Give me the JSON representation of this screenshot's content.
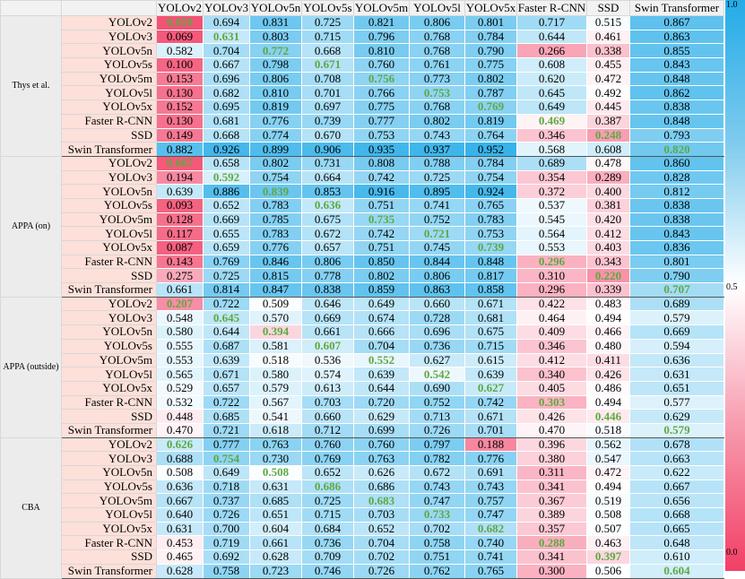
{
  "chart_data": {
    "type": "heatmap",
    "columns": [
      "YOLOv2",
      "YOLOv3",
      "YOLOv5n",
      "YOLOv5s",
      "YOLOv5m",
      "YOLOv5l",
      "YOLOv5x",
      "Faster R-CNN",
      "SSD",
      "Swin Transformer"
    ],
    "color_scale": {
      "min": 0.0,
      "mid": 0.5,
      "max": 1.0,
      "min_color": "#f23f65",
      "mid_color": "#ffffff",
      "max_color": "#23abe8"
    },
    "colorbar_ticks": [
      "1.0",
      "0.5",
      "0.0"
    ],
    "highlight_color": "#5fa843",
    "groups": [
      {
        "label": "Thys et al.",
        "rows": [
          {
            "label": "YOLOv2",
            "values": [
              0.05,
              0.694,
              0.831,
              0.725,
              0.821,
              0.806,
              0.801,
              0.717,
              0.515,
              0.867
            ],
            "highlight": 0
          },
          {
            "label": "YOLOv3",
            "values": [
              0.069,
              0.631,
              0.803,
              0.715,
              0.796,
              0.768,
              0.784,
              0.644,
              0.461,
              0.863
            ],
            "highlight": 1
          },
          {
            "label": "YOLOv5n",
            "values": [
              0.582,
              0.704,
              0.772,
              0.668,
              0.81,
              0.768,
              0.79,
              0.266,
              0.338,
              0.855
            ],
            "highlight": 2
          },
          {
            "label": "YOLOv5s",
            "values": [
              0.1,
              0.667,
              0.798,
              0.671,
              0.76,
              0.761,
              0.775,
              0.608,
              0.455,
              0.843
            ],
            "highlight": 3
          },
          {
            "label": "YOLOv5m",
            "values": [
              0.153,
              0.696,
              0.806,
              0.708,
              0.756,
              0.773,
              0.802,
              0.62,
              0.472,
              0.848
            ],
            "highlight": 4
          },
          {
            "label": "YOLOv5l",
            "values": [
              0.13,
              0.682,
              0.81,
              0.701,
              0.766,
              0.753,
              0.787,
              0.645,
              0.492,
              0.862
            ],
            "highlight": 5
          },
          {
            "label": "YOLOv5x",
            "values": [
              0.152,
              0.695,
              0.819,
              0.697,
              0.775,
              0.768,
              0.769,
              0.649,
              0.445,
              0.838
            ],
            "highlight": 6
          },
          {
            "label": "Faster R-CNN",
            "values": [
              0.13,
              0.681,
              0.776,
              0.739,
              0.777,
              0.802,
              0.819,
              0.469,
              0.387,
              0.848
            ],
            "highlight": 7
          },
          {
            "label": "SSD",
            "values": [
              0.149,
              0.668,
              0.774,
              0.67,
              0.753,
              0.743,
              0.764,
              0.346,
              0.248,
              0.793
            ],
            "highlight": 8
          },
          {
            "label": "Swin Transformer",
            "values": [
              0.882,
              0.926,
              0.899,
              0.906,
              0.935,
              0.937,
              0.952,
              0.568,
              0.608,
              0.82
            ],
            "highlight": 9
          }
        ]
      },
      {
        "label": "APPA (on)",
        "rows": [
          {
            "label": "YOLOv2",
            "values": [
              0.067,
              0.658,
              0.802,
              0.731,
              0.808,
              0.788,
              0.784,
              0.689,
              0.478,
              0.86
            ],
            "highlight": 0
          },
          {
            "label": "YOLOv3",
            "values": [
              0.194,
              0.592,
              0.754,
              0.664,
              0.742,
              0.725,
              0.754,
              0.354,
              0.289,
              0.828
            ],
            "highlight": 1
          },
          {
            "label": "YOLOv5n",
            "values": [
              0.639,
              0.886,
              0.839,
              0.853,
              0.916,
              0.895,
              0.924,
              0.372,
              0.4,
              0.812
            ],
            "highlight": 2
          },
          {
            "label": "YOLOv5s",
            "values": [
              0.093,
              0.652,
              0.783,
              0.636,
              0.751,
              0.741,
              0.765,
              0.537,
              0.381,
              0.838
            ],
            "highlight": 3
          },
          {
            "label": "YOLOv5m",
            "values": [
              0.128,
              0.669,
              0.785,
              0.675,
              0.735,
              0.752,
              0.783,
              0.545,
              0.42,
              0.838
            ],
            "highlight": 4
          },
          {
            "label": "YOLOv5l",
            "values": [
              0.117,
              0.655,
              0.783,
              0.672,
              0.742,
              0.721,
              0.753,
              0.564,
              0.412,
              0.843
            ],
            "highlight": 5
          },
          {
            "label": "YOLOv5x",
            "values": [
              0.087,
              0.659,
              0.776,
              0.657,
              0.751,
              0.745,
              0.739,
              0.553,
              0.403,
              0.836
            ],
            "highlight": 6
          },
          {
            "label": "Faster R-CNN",
            "values": [
              0.143,
              0.769,
              0.846,
              0.806,
              0.85,
              0.844,
              0.848,
              0.296,
              0.343,
              0.801
            ],
            "highlight": 7
          },
          {
            "label": "SSD",
            "values": [
              0.275,
              0.725,
              0.815,
              0.778,
              0.802,
              0.806,
              0.817,
              0.31,
              0.22,
              0.79
            ],
            "highlight": 8
          },
          {
            "label": "Swin Transformer",
            "values": [
              0.661,
              0.814,
              0.847,
              0.838,
              0.859,
              0.863,
              0.858,
              0.296,
              0.339,
              0.707
            ],
            "highlight": 9
          }
        ]
      },
      {
        "label": "APPA (outside)",
        "rows": [
          {
            "label": "YOLOv2",
            "values": [
              0.207,
              0.722,
              0.509,
              0.646,
              0.649,
              0.66,
              0.671,
              0.422,
              0.483,
              0.689
            ],
            "highlight": 0
          },
          {
            "label": "YOLOv3",
            "values": [
              0.548,
              0.645,
              0.57,
              0.669,
              0.674,
              0.728,
              0.681,
              0.464,
              0.494,
              0.579
            ],
            "highlight": 1
          },
          {
            "label": "YOLOv5n",
            "values": [
              0.58,
              0.644,
              0.394,
              0.661,
              0.666,
              0.696,
              0.675,
              0.409,
              0.466,
              0.669
            ],
            "highlight": 2
          },
          {
            "label": "YOLOv5s",
            "values": [
              0.555,
              0.687,
              0.581,
              0.607,
              0.704,
              0.736,
              0.715,
              0.346,
              0.48,
              0.594
            ],
            "highlight": 3
          },
          {
            "label": "YOLOv5m",
            "values": [
              0.553,
              0.639,
              0.518,
              0.536,
              0.552,
              0.627,
              0.615,
              0.412,
              0.411,
              0.636
            ],
            "highlight": 4
          },
          {
            "label": "YOLOv5l",
            "values": [
              0.565,
              0.671,
              0.58,
              0.574,
              0.639,
              0.542,
              0.639,
              0.34,
              0.426,
              0.631
            ],
            "highlight": 5
          },
          {
            "label": "YOLOv5x",
            "values": [
              0.529,
              0.657,
              0.579,
              0.613,
              0.644,
              0.69,
              0.627,
              0.405,
              0.486,
              0.651
            ],
            "highlight": 6
          },
          {
            "label": "Faster R-CNN",
            "values": [
              0.532,
              0.722,
              0.567,
              0.703,
              0.72,
              0.752,
              0.742,
              0.303,
              0.494,
              0.577
            ],
            "highlight": 7
          },
          {
            "label": "SSD",
            "values": [
              0.448,
              0.685,
              0.541,
              0.66,
              0.629,
              0.713,
              0.671,
              0.426,
              0.446,
              0.629
            ],
            "highlight": 8
          },
          {
            "label": "Swin Transformer",
            "values": [
              0.47,
              0.721,
              0.618,
              0.712,
              0.699,
              0.726,
              0.701,
              0.47,
              0.518,
              0.579
            ],
            "highlight": 9
          }
        ]
      },
      {
        "label": "CBA",
        "rows": [
          {
            "label": "YOLOv2",
            "values": [
              0.626,
              0.777,
              0.763,
              0.76,
              0.76,
              0.797,
              0.188,
              0.396,
              0.562,
              0.678
            ],
            "highlight": 0
          },
          {
            "label": "YOLOv3",
            "values": [
              0.688,
              0.754,
              0.73,
              0.769,
              0.763,
              0.782,
              0.776,
              0.38,
              0.547,
              0.663
            ],
            "highlight": 1
          },
          {
            "label": "YOLOv5n",
            "values": [
              0.508,
              0.649,
              0.508,
              0.652,
              0.626,
              0.672,
              0.691,
              0.311,
              0.472,
              0.622
            ],
            "highlight": 2
          },
          {
            "label": "YOLOv5s",
            "values": [
              0.636,
              0.718,
              0.631,
              0.686,
              0.686,
              0.743,
              0.743,
              0.341,
              0.494,
              0.667
            ],
            "highlight": 3
          },
          {
            "label": "YOLOv5m",
            "values": [
              0.667,
              0.737,
              0.685,
              0.725,
              0.683,
              0.747,
              0.757,
              0.367,
              0.519,
              0.656
            ],
            "highlight": 4
          },
          {
            "label": "YOLOv5l",
            "values": [
              0.64,
              0.726,
              0.651,
              0.715,
              0.703,
              0.733,
              0.747,
              0.389,
              0.508,
              0.668
            ],
            "highlight": 5
          },
          {
            "label": "YOLOv5x",
            "values": [
              0.631,
              0.7,
              0.604,
              0.684,
              0.652,
              0.702,
              0.682,
              0.357,
              0.507,
              0.665
            ],
            "highlight": 6
          },
          {
            "label": "Faster R-CNN",
            "values": [
              0.453,
              0.719,
              0.661,
              0.736,
              0.704,
              0.758,
              0.74,
              0.288,
              0.463,
              0.648
            ],
            "highlight": 7
          },
          {
            "label": "SSD",
            "values": [
              0.465,
              0.692,
              0.628,
              0.709,
              0.702,
              0.751,
              0.741,
              0.341,
              0.397,
              0.61
            ],
            "highlight": 8
          },
          {
            "label": "Swin Transformer",
            "values": [
              0.628,
              0.758,
              0.723,
              0.746,
              0.726,
              0.762,
              0.765,
              0.3,
              0.506,
              0.604
            ],
            "highlight": 9
          }
        ]
      }
    ]
  }
}
